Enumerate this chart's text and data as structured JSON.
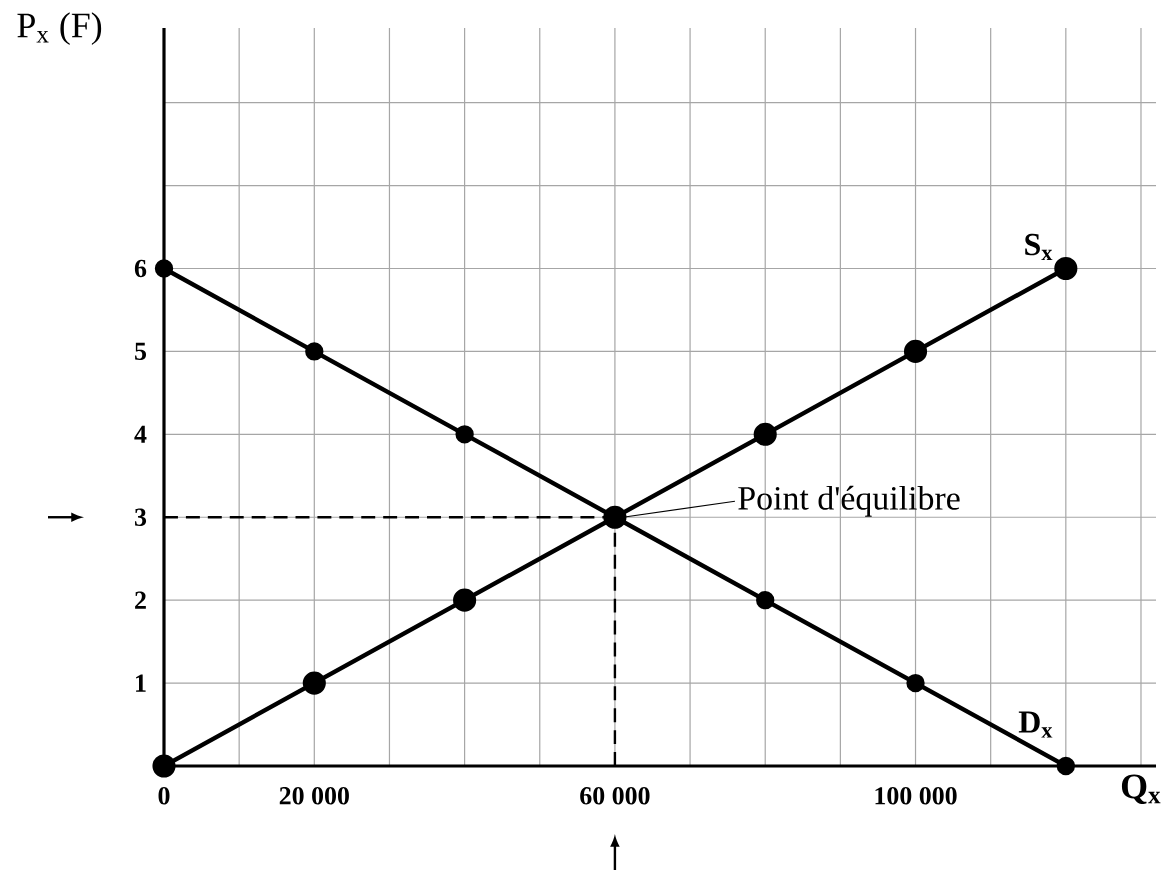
{
  "chart_data": {
    "type": "line",
    "xlabel": "Q$_{x}$",
    "ylabel": "P$_{x}$ (F)",
    "x": [
      0,
      20000,
      40000,
      60000,
      80000,
      100000,
      120000
    ],
    "series": [
      {
        "name": "S$_{x}$",
        "color": "#000000",
        "values": [
          0,
          1,
          2,
          3,
          4,
          5,
          6
        ]
      },
      {
        "name": "D$_{x}$",
        "color": "#000000",
        "values": [
          6,
          5,
          4,
          3,
          2,
          1,
          0
        ]
      }
    ],
    "xlim": [
      0,
      132000
    ],
    "ylim": [
      0,
      8.9
    ],
    "xticks": [
      0,
      {
        "value": 10000,
        "label": null
      },
      {
        "value": 20000,
        "label": "20 000"
      },
      {
        "value": 30000,
        "label": null
      },
      {
        "value": 40000,
        "label": null
      },
      {
        "value": 50000,
        "label": null
      },
      {
        "value": 60000,
        "label": "60 000"
      },
      {
        "value": 70000,
        "label": null
      },
      {
        "value": 80000,
        "label": null
      },
      {
        "value": 90000,
        "label": null
      },
      {
        "value": 100000,
        "label": "100 000"
      },
      {
        "value": 110000,
        "label": null
      },
      {
        "value": 120000,
        "label": null
      },
      {
        "value": 130000,
        "label": null
      }
    ],
    "yticks": [
      1,
      2,
      3,
      4,
      5,
      6,
      {
        "value": 7,
        "label": null
      },
      {
        "value": 8,
        "label": null
      }
    ],
    "grid": true,
    "marker": "circle",
    "line_style": "solid",
    "ref_lines": [
      {
        "axis": "y",
        "value": 3,
        "line_style": "dashed"
      },
      {
        "axis": "x",
        "value": 60000,
        "line_style": "dashed"
      }
    ],
    "annotations": [
      {
        "text": "Point d'équilibre",
        "x": 60000,
        "y": 3
      }
    ]
  }
}
